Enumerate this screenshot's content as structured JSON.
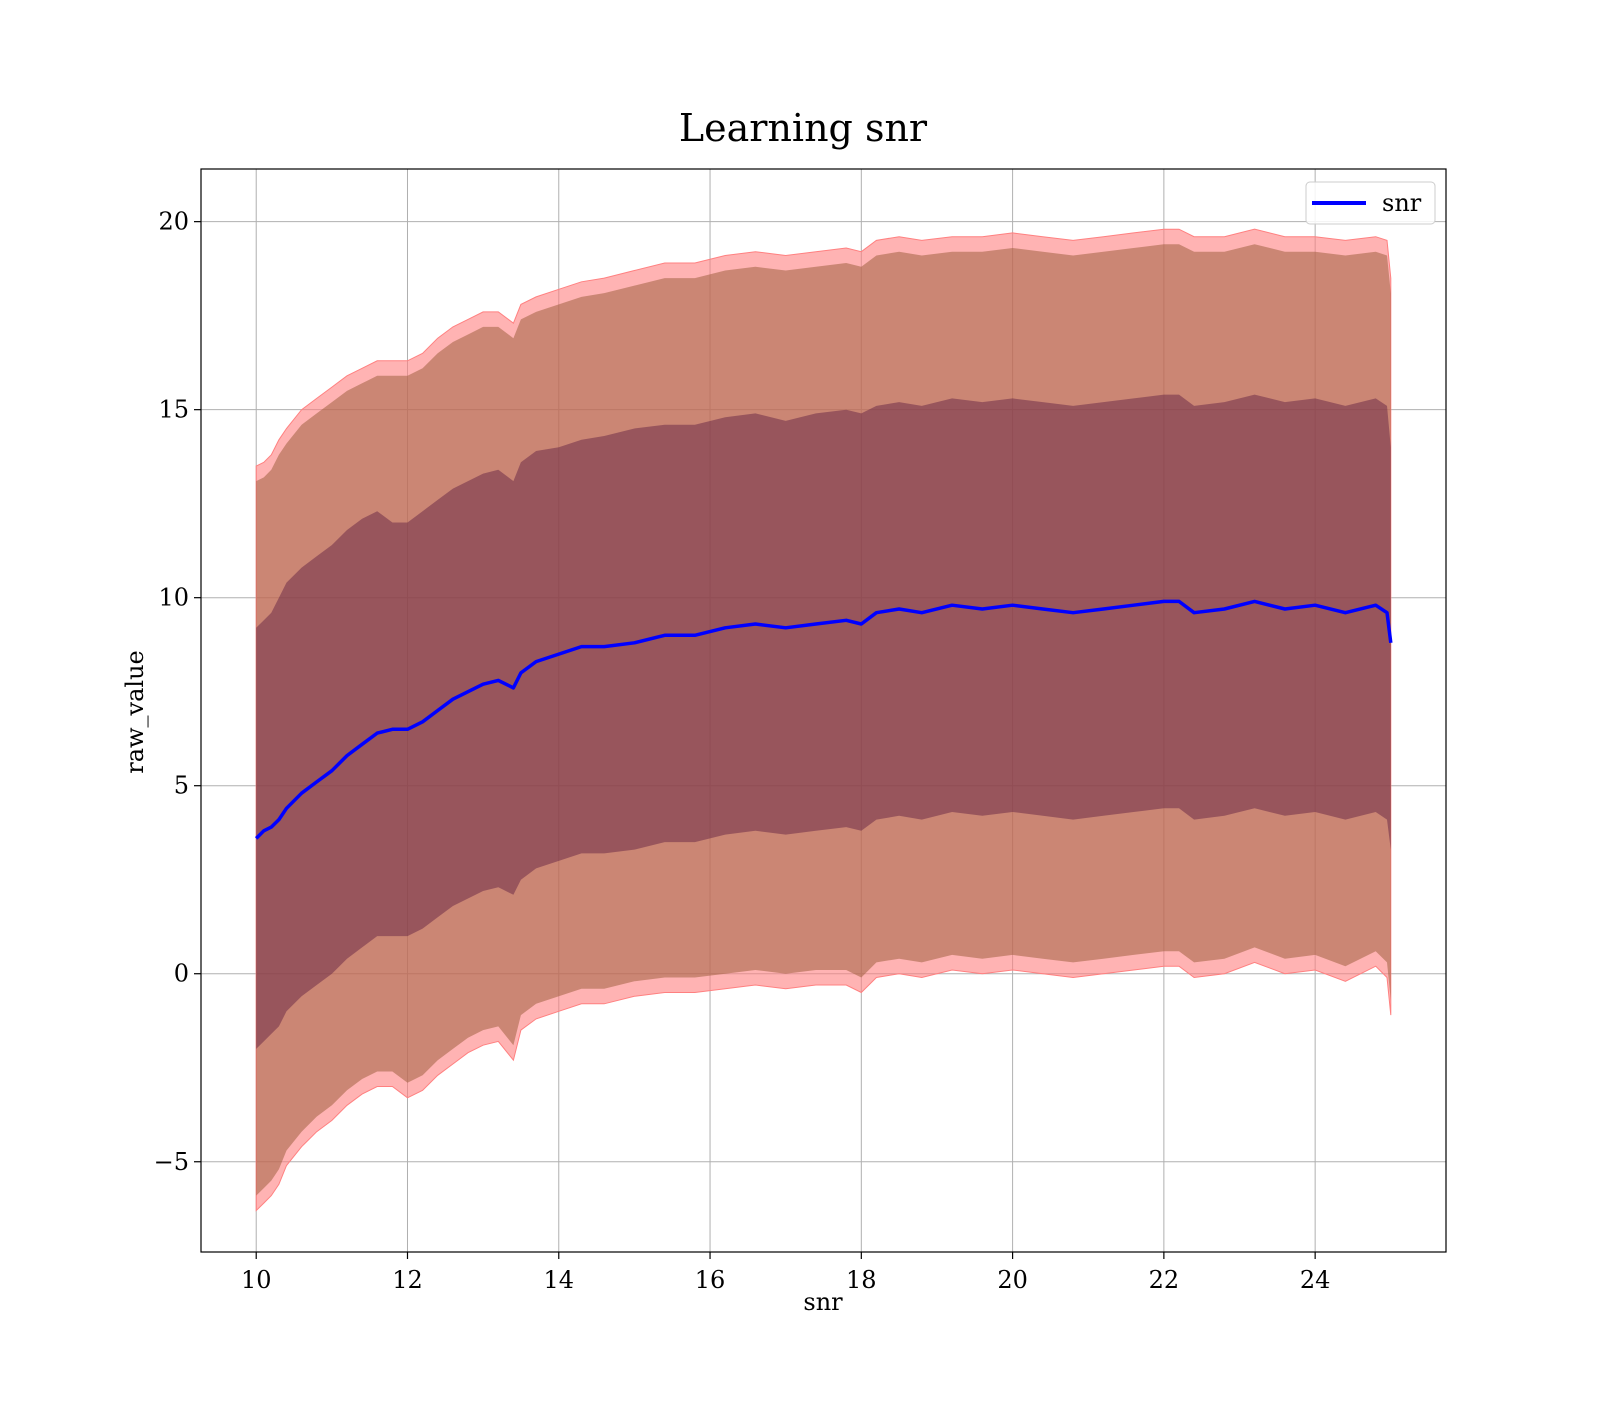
{
  "chart_data": {
    "type": "line",
    "title": "Learning snr",
    "xlabel": "snr",
    "ylabel": "raw_value",
    "xlim": [
      9.27,
      25.73
    ],
    "ylim": [
      -7.4,
      21.4
    ],
    "xticks": [
      10,
      12,
      14,
      16,
      18,
      20,
      22,
      24
    ],
    "yticks": [
      -5,
      0,
      5,
      10,
      15,
      20
    ],
    "ytick_labels": [
      "−5",
      "0",
      "5",
      "10",
      "15",
      "20"
    ],
    "grid": true,
    "legend_position": "top-right",
    "series": [
      {
        "name": "snr",
        "color": "#0000ff",
        "x": [
          10.0,
          10.1,
          10.2,
          10.3,
          10.4,
          10.6,
          10.8,
          11.0,
          11.2,
          11.4,
          11.6,
          11.8,
          12.0,
          12.2,
          12.4,
          12.6,
          12.8,
          13.0,
          13.2,
          13.4,
          13.5,
          13.7,
          14.0,
          14.3,
          14.6,
          15.0,
          15.4,
          15.8,
          16.2,
          16.6,
          17.0,
          17.4,
          17.8,
          18.0,
          18.2,
          18.5,
          18.8,
          19.2,
          19.6,
          20.0,
          20.4,
          20.8,
          21.2,
          21.6,
          22.0,
          22.2,
          22.4,
          22.8,
          23.2,
          23.6,
          24.0,
          24.4,
          24.8,
          24.95,
          25.0
        ],
        "y": [
          3.6,
          3.8,
          3.9,
          4.1,
          4.4,
          4.8,
          5.1,
          5.4,
          5.8,
          6.1,
          6.4,
          6.5,
          6.5,
          6.7,
          7.0,
          7.3,
          7.5,
          7.7,
          7.8,
          7.6,
          8.0,
          8.3,
          8.5,
          8.7,
          8.7,
          8.8,
          9.0,
          9.0,
          9.2,
          9.3,
          9.2,
          9.3,
          9.4,
          9.3,
          9.6,
          9.7,
          9.6,
          9.8,
          9.7,
          9.8,
          9.7,
          9.6,
          9.7,
          9.8,
          9.9,
          9.9,
          9.6,
          9.7,
          9.9,
          9.7,
          9.8,
          9.6,
          9.8,
          9.6,
          8.8
        ],
        "upper_inner": [
          9.2,
          9.4,
          9.6,
          10.0,
          10.4,
          10.8,
          11.1,
          11.4,
          11.8,
          12.1,
          12.3,
          12.0,
          12.0,
          12.3,
          12.6,
          12.9,
          13.1,
          13.3,
          13.4,
          13.1,
          13.6,
          13.9,
          14.0,
          14.2,
          14.3,
          14.5,
          14.6,
          14.6,
          14.8,
          14.9,
          14.7,
          14.9,
          15.0,
          14.9,
          15.1,
          15.2,
          15.1,
          15.3,
          15.2,
          15.3,
          15.2,
          15.1,
          15.2,
          15.3,
          15.4,
          15.4,
          15.1,
          15.2,
          15.4,
          15.2,
          15.3,
          15.1,
          15.3,
          15.1,
          14.0
        ],
        "lower_inner": [
          -2.0,
          -1.8,
          -1.6,
          -1.4,
          -1.0,
          -0.6,
          -0.3,
          0.0,
          0.4,
          0.7,
          1.0,
          1.0,
          1.0,
          1.2,
          1.5,
          1.8,
          2.0,
          2.2,
          2.3,
          2.1,
          2.5,
          2.8,
          3.0,
          3.2,
          3.2,
          3.3,
          3.5,
          3.5,
          3.7,
          3.8,
          3.7,
          3.8,
          3.9,
          3.8,
          4.1,
          4.2,
          4.1,
          4.3,
          4.2,
          4.3,
          4.2,
          4.1,
          4.2,
          4.3,
          4.4,
          4.4,
          4.1,
          4.2,
          4.4,
          4.2,
          4.3,
          4.1,
          4.3,
          4.1,
          3.3
        ],
        "upper_outer": [
          13.5,
          13.6,
          13.8,
          14.2,
          14.5,
          15.0,
          15.3,
          15.6,
          15.9,
          16.1,
          16.3,
          16.3,
          16.3,
          16.5,
          16.9,
          17.2,
          17.4,
          17.6,
          17.6,
          17.3,
          17.8,
          18.0,
          18.2,
          18.4,
          18.5,
          18.7,
          18.9,
          18.9,
          19.1,
          19.2,
          19.1,
          19.2,
          19.3,
          19.2,
          19.5,
          19.6,
          19.5,
          19.6,
          19.6,
          19.7,
          19.6,
          19.5,
          19.6,
          19.7,
          19.8,
          19.8,
          19.6,
          19.6,
          19.8,
          19.6,
          19.6,
          19.5,
          19.6,
          19.5,
          18.5
        ],
        "lower_outer": [
          -6.3,
          -6.1,
          -5.9,
          -5.6,
          -5.1,
          -4.6,
          -4.2,
          -3.9,
          -3.5,
          -3.2,
          -3.0,
          -3.0,
          -3.3,
          -3.1,
          -2.7,
          -2.4,
          -2.1,
          -1.9,
          -1.8,
          -2.3,
          -1.5,
          -1.2,
          -1.0,
          -0.8,
          -0.8,
          -0.6,
          -0.5,
          -0.5,
          -0.4,
          -0.3,
          -0.4,
          -0.3,
          -0.3,
          -0.5,
          -0.1,
          0.0,
          -0.1,
          0.1,
          0.0,
          0.1,
          0.0,
          -0.1,
          0.0,
          0.1,
          0.2,
          0.2,
          -0.1,
          0.0,
          0.3,
          0.0,
          0.1,
          -0.2,
          0.2,
          -0.1,
          -1.1
        ]
      }
    ],
    "colors": {
      "line": "#0000ff",
      "outer_band": "#ff8080",
      "middle_band": "#a06040",
      "inner_band": "#5a1a40",
      "grid": "#b0b0b0"
    }
  }
}
